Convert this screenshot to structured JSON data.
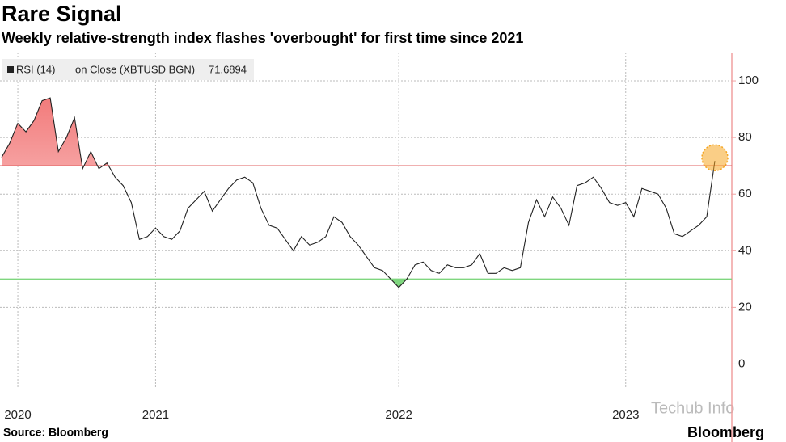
{
  "chart_data": {
    "type": "line",
    "title": "Rare Signal",
    "subtitle": "Weekly relative-strength index flashes 'overbought' for first time since 2021",
    "source": "Source: Bloomberg",
    "brand": "Bloomberg",
    "watermark": "Techub Info",
    "legend_detail": "on Close (XBTUSD BGN)",
    "categories": [
      null,
      null,
      "2020",
      null,
      null,
      null,
      null,
      null,
      null,
      null,
      null,
      null,
      null,
      null,
      null,
      null,
      null,
      null,
      null,
      "2021",
      null,
      null,
      null,
      null,
      null,
      null,
      null,
      null,
      null,
      null,
      null,
      null,
      null,
      null,
      null,
      null,
      null,
      null,
      null,
      null,
      null,
      null,
      null,
      null,
      null,
      null,
      null,
      null,
      null,
      "2022",
      null,
      null,
      null,
      null,
      null,
      null,
      null,
      null,
      null,
      null,
      null,
      null,
      null,
      null,
      null,
      null,
      null,
      null,
      null,
      null,
      null,
      null,
      null,
      null,
      null,
      null,
      null,
      "2023",
      null,
      null,
      null,
      null,
      null,
      null,
      null,
      null,
      null,
      null,
      null
    ],
    "series": [
      {
        "name": "RSI (14)",
        "color": "#222222",
        "values": [
          73,
          78,
          85,
          82,
          86,
          93,
          94,
          75,
          80,
          87,
          69,
          75,
          69,
          71,
          66,
          63,
          57,
          44,
          45,
          48,
          45,
          44,
          47,
          55,
          58,
          61,
          54,
          58,
          62,
          65,
          66,
          64,
          55,
          49,
          48,
          44,
          40,
          45,
          42,
          43,
          45,
          52,
          50,
          45,
          42,
          38,
          34,
          33,
          30,
          27,
          30,
          35,
          36,
          33,
          32,
          35,
          34,
          34,
          35,
          39,
          32,
          32,
          34,
          33,
          34,
          50,
          58,
          52,
          59,
          55,
          49,
          63,
          64,
          66,
          62,
          57,
          56,
          57,
          52,
          62,
          61,
          60,
          55,
          46,
          45,
          47,
          49,
          52,
          71.6894
        ]
      }
    ],
    "overbought": 70,
    "overbought_color": "#e06060",
    "oversold": 30,
    "oversold_color": "#7fd67f",
    "highlight_color": "#f5a623",
    "ylim": [
      -9,
      110
    ],
    "yticks": [
      0,
      20,
      40,
      60,
      80,
      100
    ],
    "grid": true
  }
}
